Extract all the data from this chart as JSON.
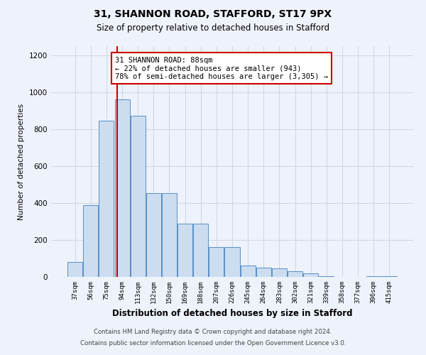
{
  "title1": "31, SHANNON ROAD, STAFFORD, ST17 9PX",
  "title2": "Size of property relative to detached houses in Stafford",
  "xlabel": "Distribution of detached houses by size in Stafford",
  "ylabel": "Number of detached properties",
  "categories": [
    "37sqm",
    "56sqm",
    "75sqm",
    "94sqm",
    "113sqm",
    "132sqm",
    "150sqm",
    "169sqm",
    "188sqm",
    "207sqm",
    "226sqm",
    "245sqm",
    "264sqm",
    "283sqm",
    "302sqm",
    "321sqm",
    "339sqm",
    "358sqm",
    "377sqm",
    "396sqm",
    "415sqm"
  ],
  "values": [
    80,
    390,
    845,
    960,
    875,
    455,
    455,
    290,
    290,
    160,
    160,
    60,
    50,
    45,
    30,
    20,
    5,
    0,
    0,
    5,
    5
  ],
  "bar_color": "#ccddf0",
  "bar_edge_color": "#5590c8",
  "annotation_text": "31 SHANNON ROAD: 88sqm\n← 22% of detached houses are smaller (943)\n78% of semi-detached houses are larger (3,305) →",
  "annotation_box_color": "#ffffff",
  "annotation_box_edge": "#cc0000",
  "footer1": "Contains HM Land Registry data © Crown copyright and database right 2024.",
  "footer2": "Contains public sector information licensed under the Open Government Licence v3.0.",
  "grid_color": "#d0d8e8",
  "background_color": "#eef2fa",
  "ylim": [
    0,
    1250
  ],
  "yticks": [
    0,
    200,
    400,
    600,
    800,
    1000,
    1200
  ]
}
